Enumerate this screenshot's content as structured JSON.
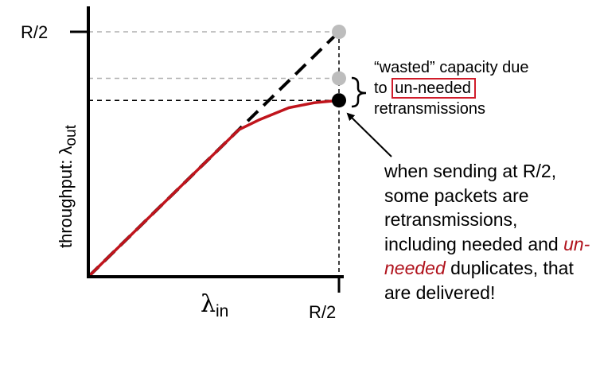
{
  "chart_data": {
    "type": "line",
    "x_tick_labels": [
      "R/2"
    ],
    "y_tick_labels": [
      "R/2"
    ],
    "ylabel": "throughput: λ",
    "ylabel_sub": "out",
    "xlabel": "λ",
    "xlabel_sub": "in",
    "xlim": [
      0,
      0.5
    ],
    "ylim": [
      0,
      0.5
    ],
    "grid": false,
    "series": [
      {
        "style": "dashed",
        "color": "#000000",
        "points": [
          [
            0,
            0
          ],
          [
            0.5,
            0.5
          ]
        ]
      },
      {
        "style": "solid",
        "color": "#c0141c",
        "points": [
          [
            0,
            0
          ],
          [
            0.1,
            0.1
          ],
          [
            0.2,
            0.2
          ],
          [
            0.3,
            0.3
          ],
          [
            0.34,
            0.32
          ],
          [
            0.4,
            0.345
          ],
          [
            0.45,
            0.355
          ],
          [
            0.5,
            0.36
          ]
        ]
      }
    ],
    "markers": [
      {
        "x": 0.5,
        "y": 0.5,
        "color": "#bdbdbd"
      },
      {
        "x": 0.5,
        "y": 0.405,
        "color": "#bdbdbd"
      },
      {
        "x": 0.5,
        "y": 0.36,
        "color": "#000000"
      }
    ],
    "reference_lines": [
      {
        "y": 0.5,
        "color": "#b0b0b0"
      },
      {
        "y": 0.405,
        "color": "#b0b0b0"
      },
      {
        "y": 0.36,
        "color": "#000000"
      }
    ],
    "annotations": {
      "wasted": {
        "line1": "“wasted” capacity due",
        "to": "to",
        "boxed": "un-needed",
        "line3": "retransmissions"
      },
      "sending": {
        "part1": "when sending at R/2, some packets are retransmissions, including needed and",
        "emph": "un-needed",
        "part2": "duplicates, that are delivered!"
      }
    }
  }
}
